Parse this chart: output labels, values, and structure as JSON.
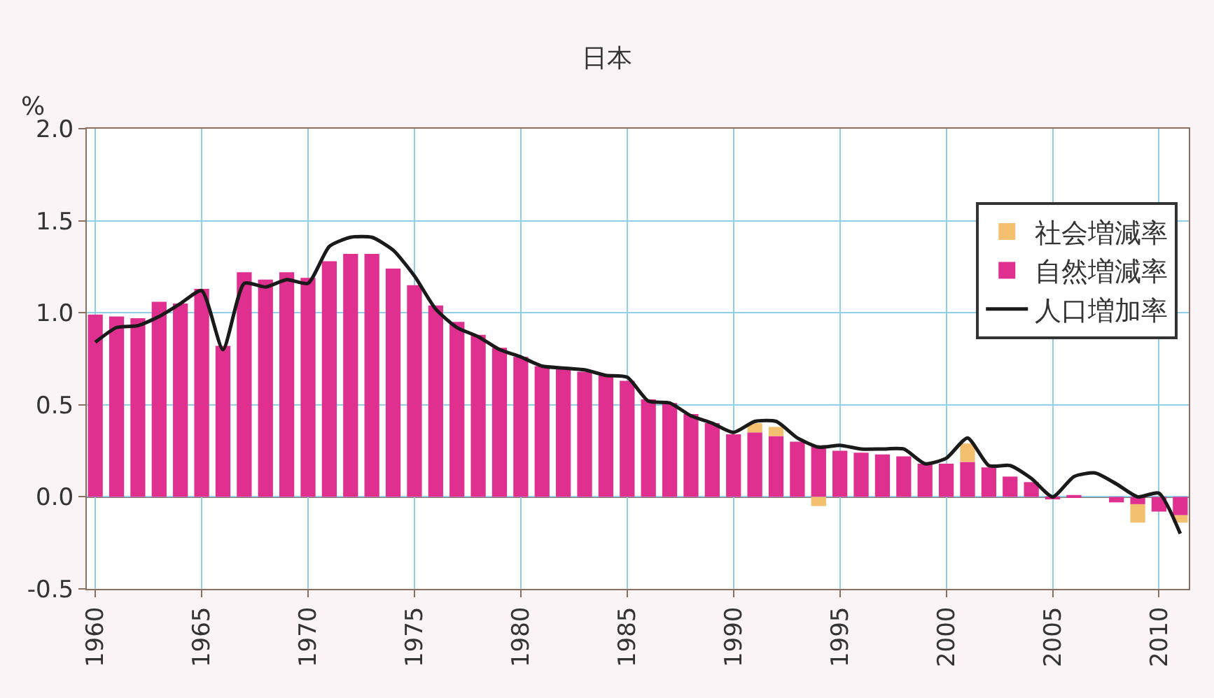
{
  "chart_data": {
    "type": "bar",
    "title": "日本",
    "ylabel": "%",
    "stacked": true,
    "x": [
      1960,
      1961,
      1962,
      1963,
      1964,
      1965,
      1966,
      1967,
      1968,
      1969,
      1970,
      1971,
      1972,
      1973,
      1974,
      1975,
      1976,
      1977,
      1978,
      1979,
      1980,
      1981,
      1982,
      1983,
      1984,
      1985,
      1986,
      1987,
      1988,
      1989,
      1990,
      1991,
      1992,
      1993,
      1994,
      1995,
      1996,
      1997,
      1998,
      1999,
      2000,
      2001,
      2002,
      2003,
      2004,
      2005,
      2006,
      2007,
      2008,
      2009,
      2010,
      2011
    ],
    "series": [
      {
        "name": "自然増減率",
        "color": "#e0308f",
        "values": [
          0.99,
          0.98,
          0.97,
          1.06,
          1.05,
          1.13,
          0.82,
          1.22,
          1.18,
          1.22,
          1.19,
          1.28,
          1.32,
          1.32,
          1.24,
          1.15,
          1.04,
          0.95,
          0.88,
          0.81,
          0.76,
          0.71,
          0.7,
          0.68,
          0.66,
          0.63,
          0.53,
          0.51,
          0.45,
          0.4,
          0.34,
          0.35,
          0.33,
          0.3,
          0.28,
          0.25,
          0.24,
          0.23,
          0.22,
          0.18,
          0.18,
          0.19,
          0.16,
          0.11,
          0.08,
          -0.01,
          0.01,
          0.0,
          -0.03,
          -0.04,
          -0.08,
          -0.1
        ]
      },
      {
        "name": "社会増減率",
        "color": "#f3c070",
        "values": [
          0,
          0,
          0,
          0,
          0,
          0,
          0,
          0,
          0,
          0,
          0,
          0,
          0,
          0,
          0,
          0,
          0,
          0,
          0,
          0,
          0,
          0,
          0,
          0,
          0,
          0,
          0,
          0,
          0,
          0,
          0,
          0.05,
          0.05,
          0,
          -0.05,
          0,
          0,
          0,
          0,
          0,
          0,
          0.1,
          0,
          0,
          0,
          0,
          0,
          0,
          0,
          -0.1,
          0,
          -0.04
        ]
      },
      {
        "name": "人口増加率",
        "type": "line",
        "color": "#1a1a1a",
        "values": [
          0.84,
          0.92,
          0.93,
          0.98,
          1.05,
          1.12,
          0.8,
          1.16,
          1.14,
          1.18,
          1.16,
          1.36,
          1.41,
          1.41,
          1.34,
          1.2,
          1.02,
          0.92,
          0.87,
          0.8,
          0.76,
          0.71,
          0.7,
          0.69,
          0.66,
          0.65,
          0.52,
          0.51,
          0.44,
          0.4,
          0.35,
          0.41,
          0.41,
          0.32,
          0.27,
          0.28,
          0.26,
          0.26,
          0.26,
          0.18,
          0.21,
          0.32,
          0.17,
          0.17,
          0.1,
          0.0,
          0.11,
          0.13,
          0.07,
          0.0,
          0.02,
          -0.2
        ]
      }
    ],
    "xlim": [
      1959.6,
      2011.4
    ],
    "xticks": [
      1960,
      1965,
      1970,
      1975,
      1980,
      1985,
      1990,
      1995,
      2000,
      2005,
      2010
    ],
    "ylim": [
      -0.5,
      2.0
    ],
    "yticks": [
      -0.5,
      {
        "value": 0,
        "label": "0.0"
      },
      0.5,
      {
        "value": 1,
        "label": "1.0"
      },
      1.5,
      {
        "value": 2,
        "label": "2.0"
      }
    ],
    "ref_lines": [
      {
        "axis": "y",
        "value": 0,
        "color": "#8a7060"
      }
    ],
    "grid": true,
    "legend": "top right"
  }
}
